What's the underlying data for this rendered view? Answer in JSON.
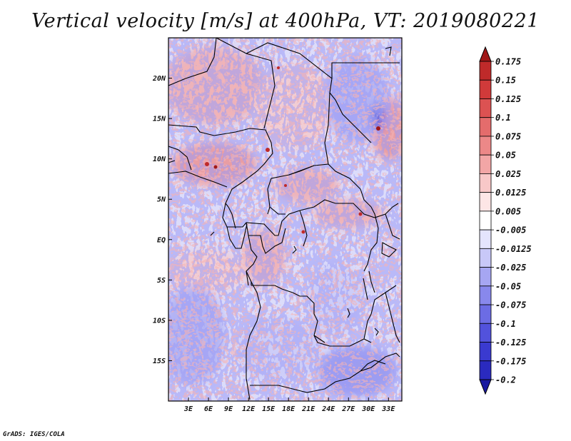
{
  "title": "Vertical velocity [m/s] at 400hPa, VT: 2019080221",
  "credit": "GrADS: IGES/COLA",
  "map": {
    "lon_range": [
      0,
      35
    ],
    "lat_range": [
      -20,
      25
    ],
    "lon_ticks": [
      {
        "value": 3,
        "label": "3E"
      },
      {
        "value": 6,
        "label": "6E"
      },
      {
        "value": 9,
        "label": "9E"
      },
      {
        "value": 12,
        "label": "12E"
      },
      {
        "value": 15,
        "label": "15E"
      },
      {
        "value": 18,
        "label": "18E"
      },
      {
        "value": 21,
        "label": "21E"
      },
      {
        "value": 24,
        "label": "24E"
      },
      {
        "value": 27,
        "label": "27E"
      },
      {
        "value": 30,
        "label": "30E"
      },
      {
        "value": 33,
        "label": "33E"
      }
    ],
    "lat_ticks": [
      {
        "value": 20,
        "label": "20N"
      },
      {
        "value": 15,
        "label": "15N"
      },
      {
        "value": 10,
        "label": "10N"
      },
      {
        "value": 5,
        "label": "5N"
      },
      {
        "value": 0,
        "label": "EQ"
      },
      {
        "value": -5,
        "label": "5S"
      },
      {
        "value": -10,
        "label": "10S"
      },
      {
        "value": -15,
        "label": "15S"
      }
    ]
  },
  "colorbar": {
    "levels": [
      "0.175",
      "0.15",
      "0.125",
      "0.1",
      "0.075",
      "0.05",
      "0.025",
      "0.0125",
      "0.005",
      "-0.005",
      "-0.0125",
      "-0.025",
      "-0.05",
      "-0.075",
      "-0.1",
      "-0.125",
      "-0.175",
      "-0.2"
    ],
    "colors": [
      "#a01818",
      "#bf2a2a",
      "#d03a3a",
      "#dc5252",
      "#e46c6c",
      "#ec8888",
      "#f2a6a6",
      "#f8c8c8",
      "#fde6e6",
      "#ffffff",
      "#e4e4fd",
      "#c8c8f8",
      "#a6a6f2",
      "#8888ec",
      "#6c6ce4",
      "#5252dc",
      "#3a3ad0",
      "#2a2abf",
      "#1a1aa0"
    ]
  }
}
